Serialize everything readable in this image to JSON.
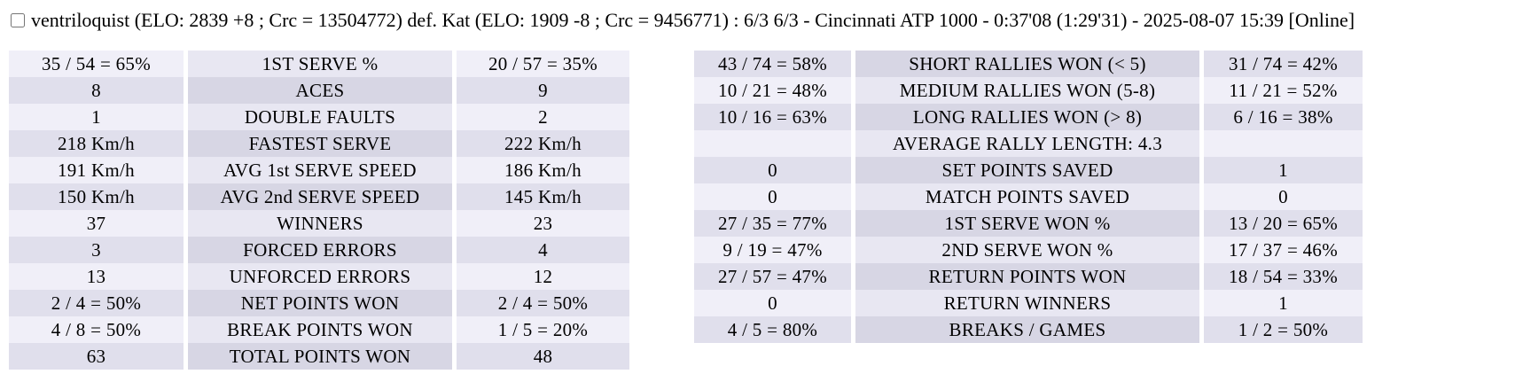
{
  "header": {
    "checkbox_checked": false,
    "title": "ventriloquist (ELO: 2839 +8 ; Crc = 13504772) def. Kat (ELO: 1909 -8 ; Crc = 9456771) : 6/3 6/3 - Cincinnati ATP 1000 - 0:37'08 (1:29'31) - 2025-08-07 15:39 [Online]"
  },
  "colors": {
    "row_light_outer": "#f0eff8",
    "row_light_label": "#e8e7f2",
    "row_dark_outer": "#e0dfec",
    "row_dark_label": "#d7d6e4",
    "page_background": "#ffffff",
    "text": "#000000"
  },
  "serve_stats": {
    "rows": [
      {
        "p1": "35 / 54 = 65%",
        "label": "1ST SERVE %",
        "p2": "20 / 57 = 35%"
      },
      {
        "p1": "8",
        "label": "ACES",
        "p2": "9"
      },
      {
        "p1": "1",
        "label": "DOUBLE FAULTS",
        "p2": "2"
      },
      {
        "p1": "218 Km/h",
        "label": "FASTEST SERVE",
        "p2": "222 Km/h"
      },
      {
        "p1": "191 Km/h",
        "label": "AVG 1st SERVE SPEED",
        "p2": "186 Km/h"
      },
      {
        "p1": "150 Km/h",
        "label": "AVG 2nd SERVE SPEED",
        "p2": "145 Km/h"
      },
      {
        "p1": "37",
        "label": "WINNERS",
        "p2": "23"
      },
      {
        "p1": "3",
        "label": "FORCED ERRORS",
        "p2": "4"
      },
      {
        "p1": "13",
        "label": "UNFORCED ERRORS",
        "p2": "12"
      },
      {
        "p1": "2 / 4 = 50%",
        "label": "NET POINTS WON",
        "p2": "2 / 4 = 50%"
      },
      {
        "p1": "4 / 8 = 50%",
        "label": "BREAK POINTS WON",
        "p2": "1 / 5 = 20%"
      },
      {
        "p1": "63",
        "label": "TOTAL POINTS WON",
        "p2": "48"
      }
    ]
  },
  "rally_stats": {
    "rows": [
      {
        "p1": "43 / 74 = 58%",
        "label": "SHORT RALLIES WON (< 5)",
        "p2": "31 / 74 = 42%"
      },
      {
        "p1": "10 / 21 = 48%",
        "label": "MEDIUM RALLIES WON (5-8)",
        "p2": "11 / 21 = 52%"
      },
      {
        "p1": "10 / 16 = 63%",
        "label": "LONG RALLIES WON (> 8)",
        "p2": "6 / 16 = 38%"
      },
      {
        "p1": "",
        "label": "AVERAGE RALLY LENGTH: 4.3",
        "p2": ""
      },
      {
        "p1": "0",
        "label": "SET POINTS SAVED",
        "p2": "1"
      },
      {
        "p1": "0",
        "label": "MATCH POINTS SAVED",
        "p2": "0"
      },
      {
        "p1": "27 / 35 = 77%",
        "label": "1ST SERVE WON %",
        "p2": "13 / 20 = 65%"
      },
      {
        "p1": "9 / 19 = 47%",
        "label": "2ND SERVE WON %",
        "p2": "17 / 37 = 46%"
      },
      {
        "p1": "27 / 57 = 47%",
        "label": "RETURN POINTS WON",
        "p2": "18 / 54 = 33%"
      },
      {
        "p1": "0",
        "label": "RETURN WINNERS",
        "p2": "1"
      },
      {
        "p1": "4 / 5 = 80%",
        "label": "BREAKS / GAMES",
        "p2": "1 / 2 = 50%"
      }
    ]
  }
}
